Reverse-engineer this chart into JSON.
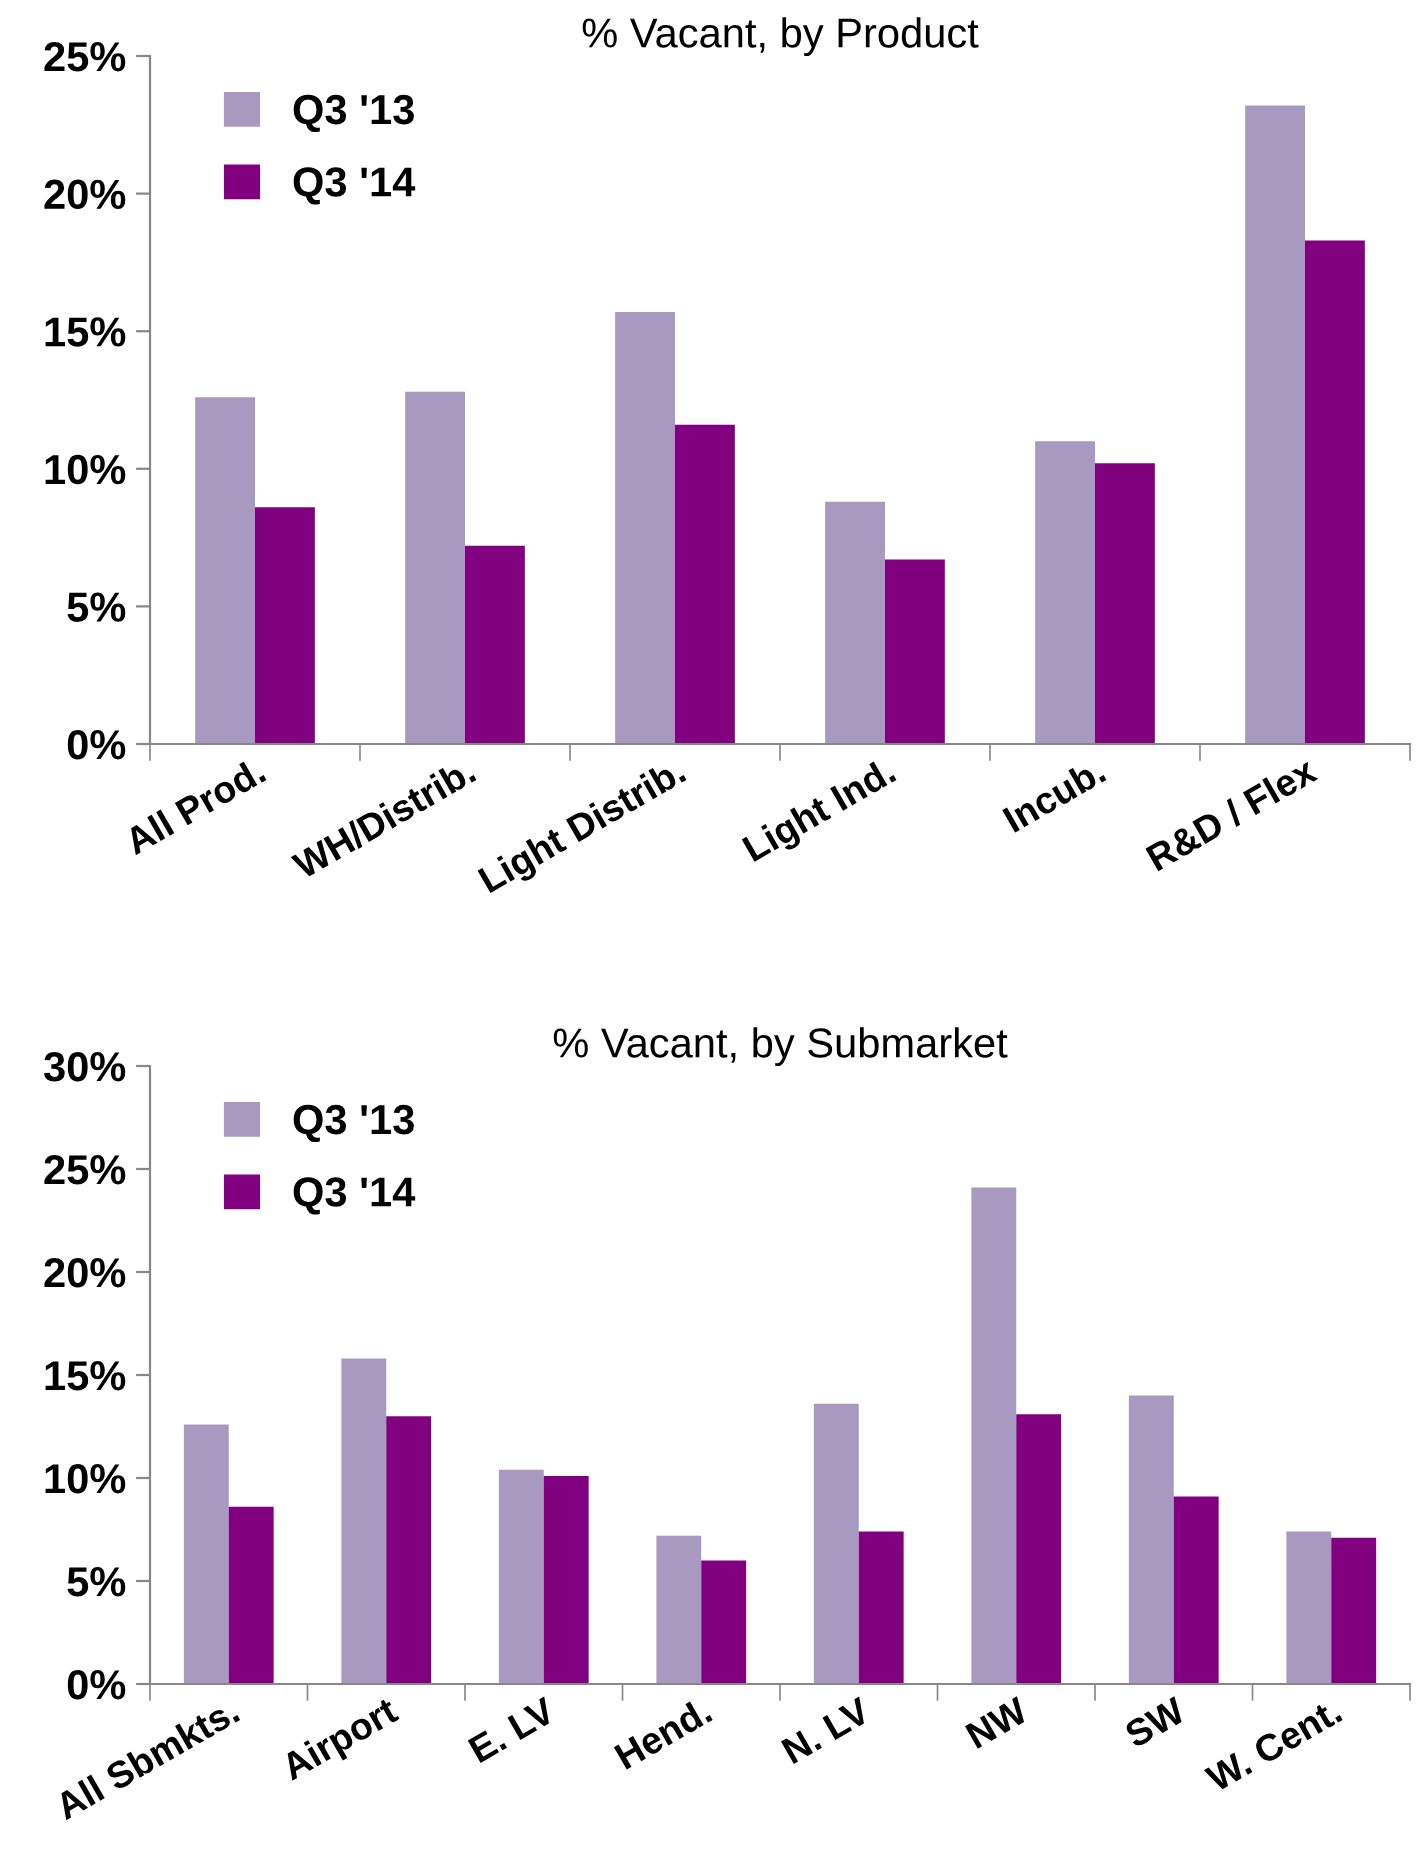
{
  "chart_data": [
    {
      "type": "bar",
      "title": "% Vacant, by Product",
      "categories": [
        "All Prod.",
        "WH/Distrib.",
        "Light Distrib.",
        "Light Ind.",
        "Incub.",
        "R&D / Flex"
      ],
      "series": [
        {
          "name": "Q3 '13",
          "color": "#a899c0",
          "values": [
            12.6,
            12.8,
            15.7,
            8.8,
            11.0,
            23.2
          ]
        },
        {
          "name": "Q3 '14",
          "color": "#800080",
          "values": [
            8.6,
            7.2,
            11.6,
            6.7,
            10.2,
            18.3
          ]
        }
      ],
      "ylim": [
        0,
        25
      ],
      "yticks": [
        {
          "value": 0,
          "label": "0%"
        },
        {
          "value": 5,
          "label": "5%"
        },
        {
          "value": 10,
          "label": "10%"
        },
        {
          "value": 15,
          "label": "15%"
        },
        {
          "value": 20,
          "label": "20%"
        },
        {
          "value": 25,
          "label": "25%"
        }
      ],
      "grid": false,
      "legend": "top left"
    },
    {
      "type": "bar",
      "title": "% Vacant, by Submarket",
      "categories": [
        "All Sbmkts.",
        "Airport",
        "E. LV",
        "Hend.",
        "N. LV",
        "NW",
        "SW",
        "W. Cent."
      ],
      "series": [
        {
          "name": "Q3 '13",
          "color": "#a899c0",
          "values": [
            12.6,
            15.8,
            10.4,
            7.2,
            13.6,
            24.1,
            14.0,
            7.4
          ]
        },
        {
          "name": "Q3 '14",
          "color": "#800080",
          "values": [
            8.6,
            13.0,
            10.1,
            6.0,
            7.4,
            13.1,
            9.1,
            7.1
          ]
        }
      ],
      "ylim": [
        0,
        30
      ],
      "yticks": [
        {
          "value": 0,
          "label": "0%"
        },
        {
          "value": 5,
          "label": "5%"
        },
        {
          "value": 10,
          "label": "10%"
        },
        {
          "value": 15,
          "label": "15%"
        },
        {
          "value": 20,
          "label": "20%"
        },
        {
          "value": 25,
          "label": "25%"
        },
        {
          "value": 30,
          "label": "30%"
        }
      ],
      "grid": false,
      "legend": "top left"
    }
  ]
}
